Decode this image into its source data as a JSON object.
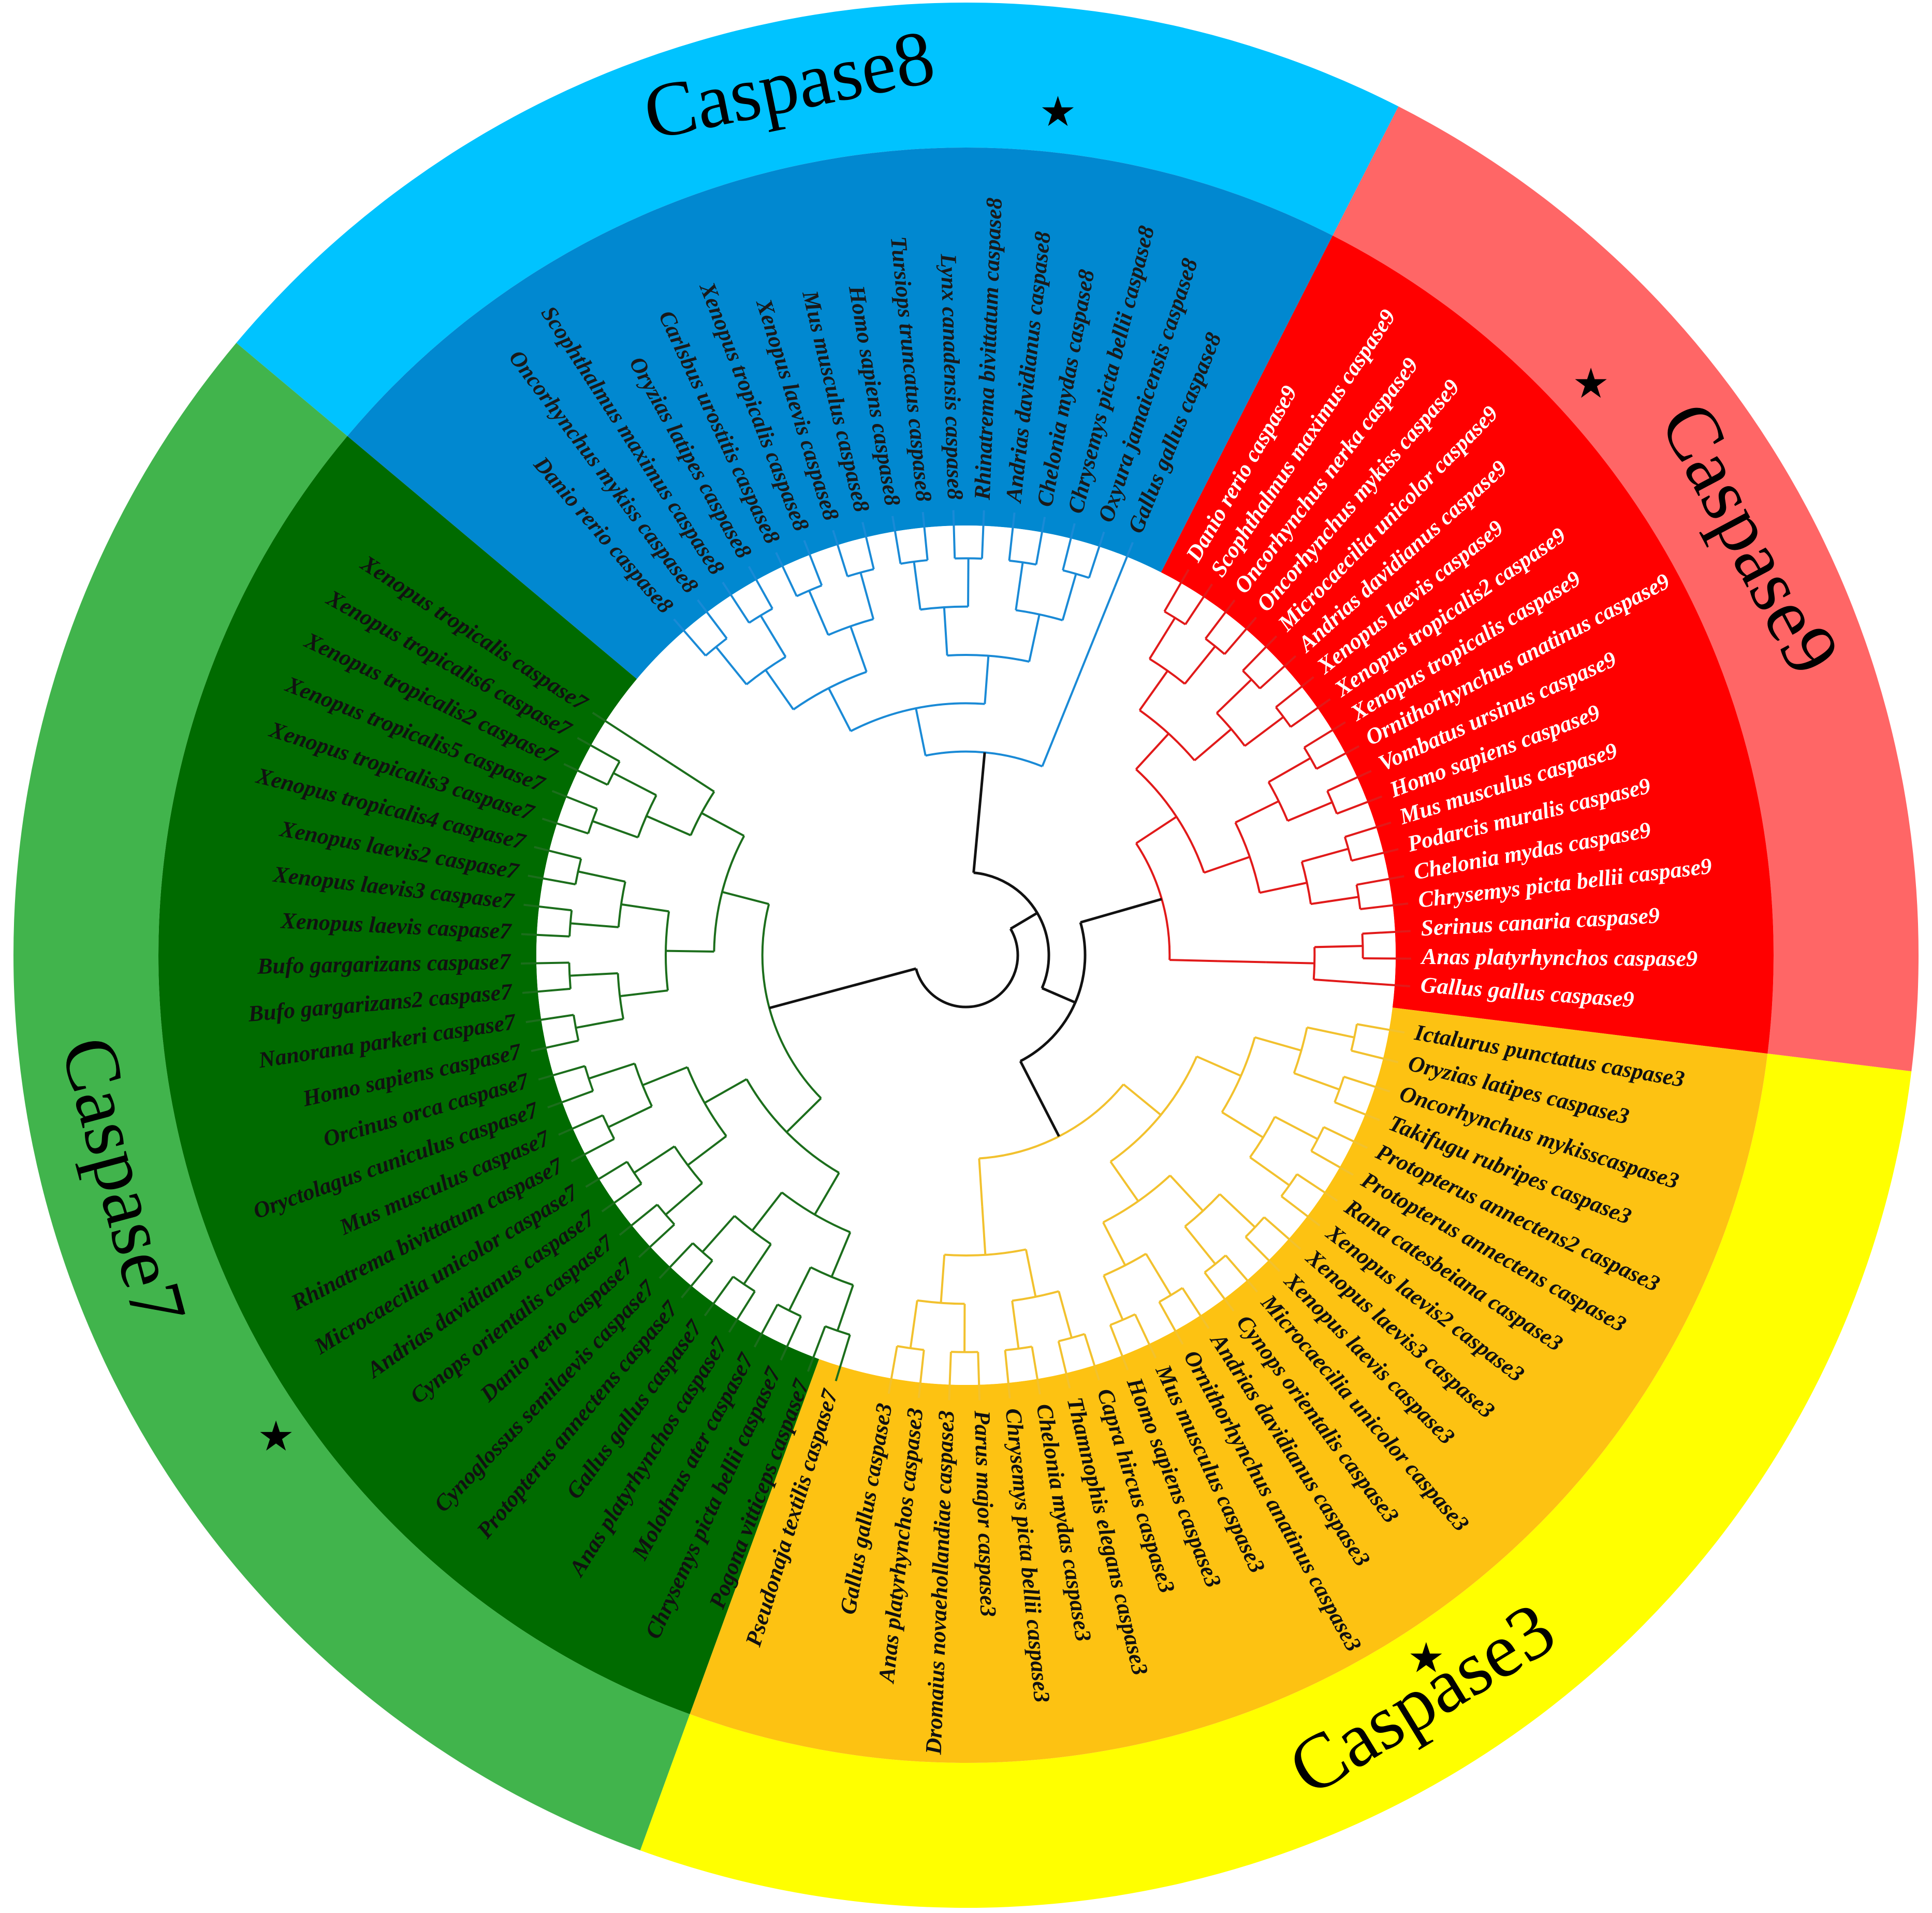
{
  "clades": [
    {
      "id": "caspase8",
      "title": "Caspase8",
      "outer_color": "#00c3ff",
      "inner_color": "#0188d0",
      "branch_color": "#1a8ad6",
      "text_color": "#1a1a1a",
      "leaves": [
        "Danio rerio caspase8",
        "Oncorhynchus mykiss caspase8",
        "Scophthalmus maximus caspase8",
        "Oryzias latipes caspase8",
        "Carlsbus urostitis caspase8",
        "Xenopus tropicalis caspase8",
        "Xenopus laevis caspase8",
        "Mus musculus caspase8",
        "Homo sapiens caspase8",
        "Tursiops truncatus caspase8",
        "Lynx canadensis caspase8",
        "Rhinatrema bivittatum caspase8",
        "Andrias davidianus caspase8",
        "Chelonia mydas caspase8",
        "Chrysemys picta bellii caspase8",
        "Oxyura jamaicensis caspase8",
        "Gallus gallus caspase8"
      ],
      "star_leaf": "Andrias davidianus caspase8"
    },
    {
      "id": "caspase9",
      "title": "Caspase9",
      "outer_color": "#ff6666",
      "inner_color": "#ff0000",
      "branch_color": "#e11a1a",
      "text_color": "#ffffff",
      "leaves": [
        "Danio rerio caspase9",
        "Scophthalmus maximus caspase9",
        "Oncorhynchus nerka caspase9",
        "Oncorhynchus mykiss caspase9",
        "Microcaecilia unicolor caspase9",
        "Andrias davidianus caspase9",
        "Xenopus laevis caspase9",
        "Xenopus tropicalis2 caspase9",
        "Xenopus tropicalis caspase9",
        "Ornithorhynchus anatinus caspase9",
        "Vombatus ursinus caspase9",
        "Homo sapiens caspase9",
        "Mus musculus caspase9",
        "Podarcis muralis caspase9",
        "Chelonia mydas caspase9",
        "Chrysemys picta bellii caspase9",
        "Serinus canaria caspase9",
        "Anas platyrhynchos caspase9",
        "Gallus gallus caspase9"
      ],
      "star_leaf": "Andrias davidianus caspase9"
    },
    {
      "id": "caspase3",
      "title": "Caspase3",
      "outer_color": "#ffff00",
      "inner_color": "#fdc212",
      "branch_color": "#f2c12e",
      "text_color": "#111111",
      "leaves": [
        "Ictalurus punctatus caspase3",
        "Oryzias latipes caspase3",
        "Oncorhynchus mykisscaspase3",
        "Takifugu rubripes caspase3",
        "Protopterus annectens2 caspase3",
        "Protopterus annectens caspase3",
        "Rana catesbeiana caspase3",
        "Xenopus laevis2 caspase3",
        "Xenopus laevis3 caspase3",
        "Xenopus laevis caspase3",
        "Microcaecilia unicolor caspase3",
        "Cynops orientalis caspase3",
        "Andrias davidianus caspase3",
        "Ornithorhynchus anatinus caspase3",
        "Mus musculus caspase3",
        "Homo sapiens caspase3",
        "Capra hircus caspase3",
        "Thamnophis elegans caspase3",
        "Chelonia mydas caspase3",
        "Chrysemys picta bellii caspase3",
        "Parus major caspase3",
        "Dromaius novaehollandiae caspase3",
        "Anas platyrhynchos caspase3",
        "Gallus gallus caspase3"
      ],
      "star_leaf": "Andrias davidianus caspase3"
    },
    {
      "id": "caspase7",
      "title": "Caspase7",
      "outer_color": "#41b44c",
      "inner_color": "#006b00",
      "branch_color": "#1c6e1c",
      "text_color": "#111111",
      "leaves": [
        "Pseudonaja textilis caspase7",
        "Pogona vitticeps caspase7",
        "Chrysemys picta bellii caspase7",
        "Molothrus ater caspase7",
        "Anas platyrhynchos caspase7",
        "Gallus gallus caspase7",
        "Protopterus annectens caspase7",
        "Cynoglossus semilaevis caspase7",
        "Danio rerio caspase7",
        "Cynops orientalis caspase7",
        "Andrias davidianus caspase7",
        "Microcaecilia unicolor caspase7",
        "Rhinatrema bivittatum caspase7",
        "Mus musculus caspase7",
        "Oryctolagus cuniculus caspase7",
        "Orcinus orca caspase7",
        "Homo sapiens caspase7",
        "Nanorana parkeri caspase7",
        "Bufo gargarizans2 caspase7",
        "Bufo gargarizans caspase7",
        "Xenopus laevis caspase7",
        "Xenopus laevis3 caspase7",
        "Xenopus laevis2 caspase7",
        "Xenopus tropicalis4 caspase7",
        "Xenopus tropicalis3 caspase7",
        "Xenopus tropicalis5 caspase7",
        "Xenopus tropicalis2 caspase7",
        "Xenopus tropicalis6 caspase7",
        "Xenopus tropicalis caspase7"
      ],
      "star_leaf": "Andrias davidianus caspase7"
    }
  ],
  "star_symbol": "★",
  "root_branch_color": "#111111"
}
